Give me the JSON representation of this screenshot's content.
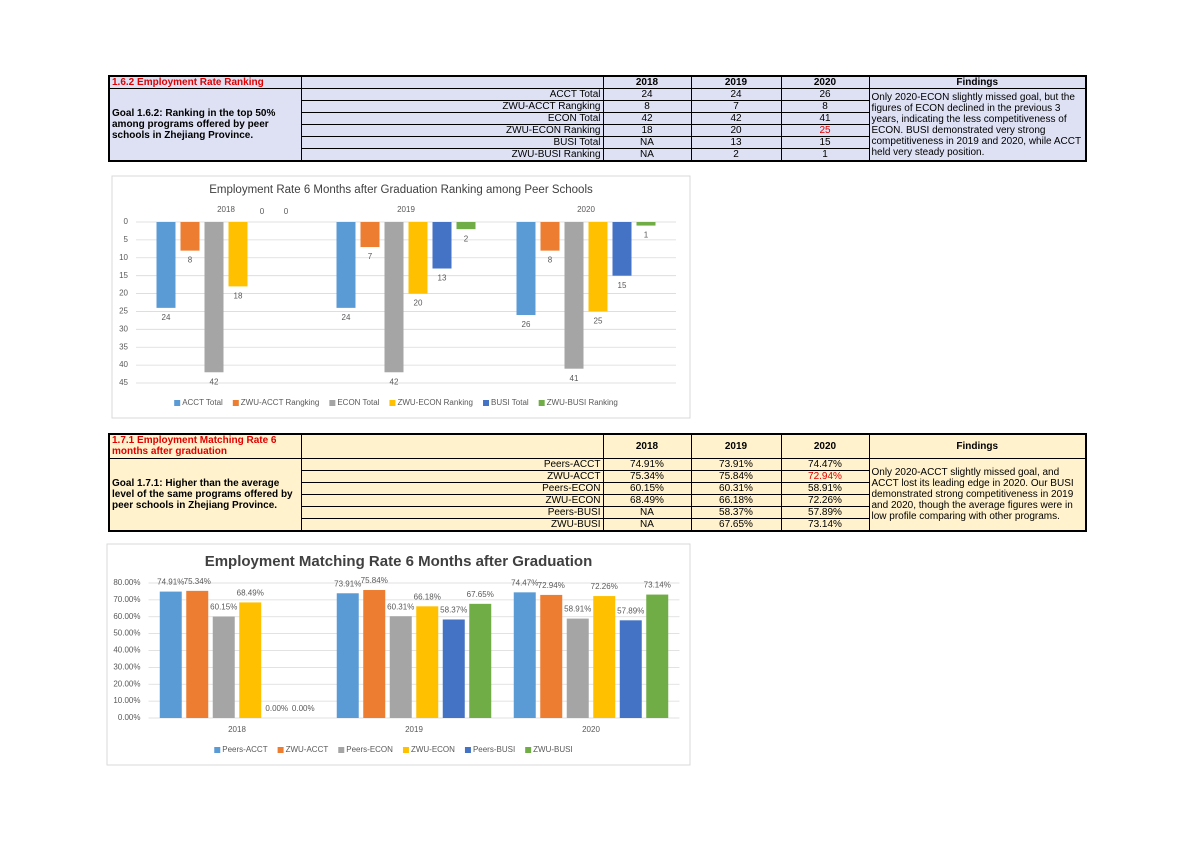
{
  "tables": [
    {
      "heading": "1.6.2 Employment Rate Ranking",
      "goal": "Goal 1.6.2: Ranking in the top 50% among programs offered by peer schools in Zhejiang Province.",
      "columns": [
        "2018",
        "2019",
        "2020",
        "Findings"
      ],
      "rows": [
        [
          "ACCT Total",
          "24",
          "24",
          "26"
        ],
        [
          "ZWU-ACCT Rangking",
          "8",
          "7",
          "8"
        ],
        [
          "ECON Total",
          "42",
          "42",
          "41"
        ],
        [
          "ZWU-ECON Ranking",
          "18",
          "20",
          "25"
        ],
        [
          "BUSI Total",
          "NA",
          "13",
          "15"
        ],
        [
          "ZWU-BUSI Ranking",
          "NA",
          "2",
          "1"
        ]
      ],
      "findings": "Only 2020-ECON slightly missed goal, but the figures of ECON declined in the previous 3 years, indicating the less competitiveness of ECON. BUSI demonstrated very strong competitiveness in 2019 and 2020, while ACCT held very steady position."
    },
    {
      "heading": "1.7.1 Employment Matching Rate 6 months after graduation",
      "goal": "Goal 1.7.1: Higher than the average level of the same programs offered by peer schools in Zhejiang Province.",
      "columns": [
        "2018",
        "2019",
        "2020",
        "Findings"
      ],
      "rows": [
        [
          "Peers-ACCT",
          "74.91%",
          "73.91%",
          "74.47%"
        ],
        [
          "ZWU-ACCT",
          "75.34%",
          "75.84%",
          "72.94%"
        ],
        [
          "Peers-ECON",
          "60.15%",
          "60.31%",
          "58.91%"
        ],
        [
          "ZWU-ECON",
          "68.49%",
          "66.18%",
          "72.26%"
        ],
        [
          "Peers-BUSI",
          "NA",
          "58.37%",
          "57.89%"
        ],
        [
          "ZWU-BUSI",
          "NA",
          "67.65%",
          "73.14%"
        ]
      ],
      "findings": "Only 2020-ACCT slightly missed goal, and ACCT lost its leading edge in 2020. Our BUSI demonstrated strong competitiveness in 2019 and 2020, though the average figures were in low profile comparing with other programs."
    }
  ],
  "chart_data": [
    {
      "type": "bar",
      "title": "Employment Rate 6 Months after Graduation Ranking among Peer Schools",
      "categories": [
        "2018",
        "2019",
        "2020"
      ],
      "series": [
        {
          "name": "ACCT Total",
          "color": "#5b9bd5",
          "values": [
            24,
            24,
            26
          ]
        },
        {
          "name": "ZWU-ACCT Rangking",
          "color": "#ed7d31",
          "values": [
            8,
            7,
            8
          ]
        },
        {
          "name": "ECON Total",
          "color": "#a5a5a5",
          "values": [
            42,
            42,
            41
          ]
        },
        {
          "name": "ZWU-ECON Ranking",
          "color": "#ffc000",
          "values": [
            18,
            20,
            25
          ]
        },
        {
          "name": "BUSI Total",
          "color": "#4472c4",
          "values": [
            0,
            13,
            15
          ]
        },
        {
          "name": "ZWU-BUSI Ranking",
          "color": "#70ad47",
          "values": [
            0,
            2,
            1
          ]
        }
      ],
      "ylim": [
        0,
        45
      ],
      "yticks": [
        0,
        5,
        10,
        15,
        20,
        25,
        30,
        35,
        40,
        45
      ],
      "y_inverted": true,
      "grid": true,
      "legend": "bottom"
    },
    {
      "type": "bar",
      "title": "Employment Matching Rate 6 Months after Graduation",
      "categories": [
        "2018",
        "2019",
        "2020"
      ],
      "series": [
        {
          "name": "Peers-ACCT",
          "color": "#5b9bd5",
          "values": [
            74.91,
            73.91,
            74.47
          ],
          "value_labels": [
            "74.91%",
            "73.91%",
            "74.47%"
          ]
        },
        {
          "name": "ZWU-ACCT",
          "color": "#ed7d31",
          "values": [
            75.34,
            75.84,
            72.94
          ],
          "value_labels": [
            "75.34%",
            "75.84%",
            "72.94%"
          ]
        },
        {
          "name": "Peers-ECON",
          "color": "#a5a5a5",
          "values": [
            60.15,
            60.31,
            58.91
          ],
          "value_labels": [
            "60.15%",
            "60.31%",
            "58.91%"
          ]
        },
        {
          "name": "ZWU-ECON",
          "color": "#ffc000",
          "values": [
            68.49,
            66.18,
            72.26
          ],
          "value_labels": [
            "68.49%",
            "66.18%",
            "72.26%"
          ]
        },
        {
          "name": "Peers-BUSI",
          "color": "#4472c4",
          "values": [
            0,
            58.37,
            57.89
          ],
          "value_labels": [
            "0.00%",
            "58.37%",
            "57.89%"
          ]
        },
        {
          "name": "ZWU-BUSI",
          "color": "#70ad47",
          "values": [
            0,
            67.65,
            73.14
          ],
          "value_labels": [
            "0.00%",
            "67.65%",
            "73.14%"
          ]
        }
      ],
      "ylim": [
        0,
        80
      ],
      "yticks": [
        {
          "value": 0,
          "label": "0.00%"
        },
        {
          "value": 10,
          "label": "10.00%"
        },
        {
          "value": 20,
          "label": "20.00%"
        },
        {
          "value": 30,
          "label": "30.00%"
        },
        {
          "value": 40,
          "label": "40.00%"
        },
        {
          "value": 50,
          "label": "50.00%"
        },
        {
          "value": 60,
          "label": "60.00%"
        },
        {
          "value": 70,
          "label": "70.00%"
        },
        {
          "value": 80,
          "label": "80.00%"
        }
      ],
      "y_inverted": false,
      "grid": true,
      "legend": "bottom"
    }
  ]
}
